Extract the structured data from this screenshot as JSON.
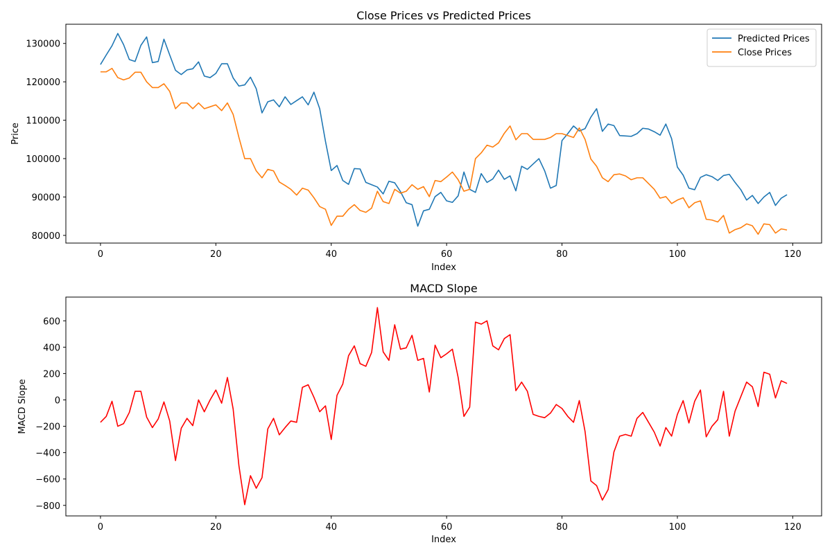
{
  "chart_data": [
    {
      "type": "line",
      "title": "Close Prices vs Predicted Prices",
      "xlabel": "Index",
      "ylabel": "Price",
      "xlim": [
        -6,
        125
      ],
      "ylim": [
        78000,
        135000
      ],
      "xticks": [
        0,
        20,
        40,
        60,
        80,
        100,
        120
      ],
      "yticks": [
        80000,
        90000,
        100000,
        110000,
        120000,
        130000
      ],
      "legend": "top-right",
      "grid": false,
      "series": [
        {
          "name": "Predicted Prices",
          "color": "#1f77b4",
          "values": [
            124500,
            127000,
            129400,
            132600,
            129700,
            125800,
            125300,
            129500,
            131700,
            125000,
            125300,
            131100,
            127000,
            123000,
            121900,
            123100,
            123400,
            125200,
            121500,
            121100,
            122200,
            124700,
            124700,
            121000,
            118900,
            119200,
            121200,
            118200,
            111900,
            114800,
            115300,
            113500,
            116100,
            114100,
            115100,
            116100,
            114000,
            117300,
            113000,
            104500,
            96900,
            98200,
            94300,
            93300,
            97400,
            97300,
            93800,
            93200,
            92600,
            90800,
            94100,
            93700,
            91400,
            88500,
            88000,
            82400,
            86400,
            86800,
            90100,
            91200,
            89000,
            88600,
            90300,
            96500,
            92000,
            91200,
            96100,
            93800,
            94700,
            97000,
            94600,
            95500,
            91600,
            98000,
            97200,
            98600,
            100000,
            96800,
            92300,
            93000,
            104700,
            106500,
            108500,
            107200,
            107800,
            110800,
            113000,
            107100,
            109000,
            108600,
            106000,
            105900,
            105800,
            106500,
            107900,
            107700,
            107000,
            106100,
            109000,
            105200,
            97800,
            95700,
            92300,
            91900,
            95100,
            95800,
            95300,
            94300,
            95600,
            95900,
            93800,
            91900,
            89200,
            90400,
            88300,
            90000,
            91200,
            87800,
            89700,
            90600
          ]
        },
        {
          "name": "Close Prices",
          "color": "#ff7f0e",
          "values": [
            122600,
            122600,
            123500,
            121100,
            120500,
            121000,
            122500,
            122500,
            120000,
            118500,
            118500,
            119500,
            117500,
            113000,
            114500,
            114500,
            113000,
            114500,
            113000,
            113500,
            114000,
            112500,
            114500,
            111500,
            105500,
            100000,
            100000,
            96800,
            95000,
            97200,
            96800,
            93900,
            93000,
            92000,
            90500,
            92300,
            91800,
            89800,
            87500,
            86800,
            82600,
            85000,
            85000,
            86800,
            88000,
            86500,
            86000,
            87100,
            91500,
            88800,
            88300,
            92000,
            91000,
            91500,
            93200,
            92000,
            92700,
            90100,
            94300,
            94000,
            95200,
            96500,
            94500,
            91500,
            92000,
            100000,
            101500,
            103500,
            103000,
            104100,
            106600,
            108500,
            104900,
            106500,
            106500,
            105000,
            105000,
            105000,
            105500,
            106500,
            106500,
            106000,
            105500,
            108000,
            105000,
            99900,
            98000,
            95000,
            94000,
            95800,
            96000,
            95500,
            94500,
            95000,
            95000,
            93500,
            92000,
            89700,
            90100,
            88300,
            89200,
            89800,
            87200,
            88500,
            89000,
            84200,
            84000,
            83500,
            85200,
            80600,
            81500,
            82000,
            83000,
            82500,
            80300,
            83000,
            82800,
            80600,
            81700,
            81400
          ]
        }
      ]
    },
    {
      "type": "line",
      "title": "MACD Slope",
      "xlabel": "Index",
      "ylabel": "MACD Slope",
      "xlim": [
        -6,
        125
      ],
      "ylim": [
        -880,
        780
      ],
      "xticks": [
        0,
        20,
        40,
        60,
        80,
        100,
        120
      ],
      "yticks": [
        -800,
        -600,
        -400,
        -200,
        0,
        200,
        400,
        600
      ],
      "ytick_labels": [
        "−800",
        "−600",
        "−400",
        "−200",
        "0",
        "200",
        "400",
        "600"
      ],
      "grid": false,
      "series": [
        {
          "name": "",
          "color": "#ff0000",
          "values": [
            -170,
            -125,
            -10,
            -200,
            -180,
            -95,
            65,
            65,
            -130,
            -210,
            -145,
            -15,
            -160,
            -460,
            -215,
            -140,
            -195,
            0,
            -90,
            0,
            75,
            -25,
            170,
            -70,
            -500,
            -795,
            -575,
            -670,
            -590,
            -220,
            -140,
            -265,
            -210,
            -160,
            -170,
            95,
            115,
            20,
            -90,
            -45,
            -300,
            35,
            120,
            335,
            410,
            275,
            255,
            360,
            700,
            365,
            300,
            570,
            385,
            395,
            490,
            300,
            315,
            60,
            415,
            320,
            350,
            385,
            170,
            -125,
            -55,
            590,
            575,
            600,
            410,
            380,
            465,
            495,
            70,
            135,
            65,
            -110,
            -125,
            -135,
            -100,
            -35,
            -65,
            -125,
            -170,
            -5,
            -240,
            -615,
            -650,
            -760,
            -680,
            -395,
            -275,
            -262,
            -275,
            -140,
            -95,
            -170,
            -245,
            -350,
            -210,
            -275,
            -110,
            -5,
            -175,
            -10,
            75,
            -280,
            -200,
            -150,
            65,
            -275,
            -85,
            25,
            135,
            100,
            -50,
            210,
            195,
            15,
            145,
            125
          ]
        }
      ]
    }
  ]
}
